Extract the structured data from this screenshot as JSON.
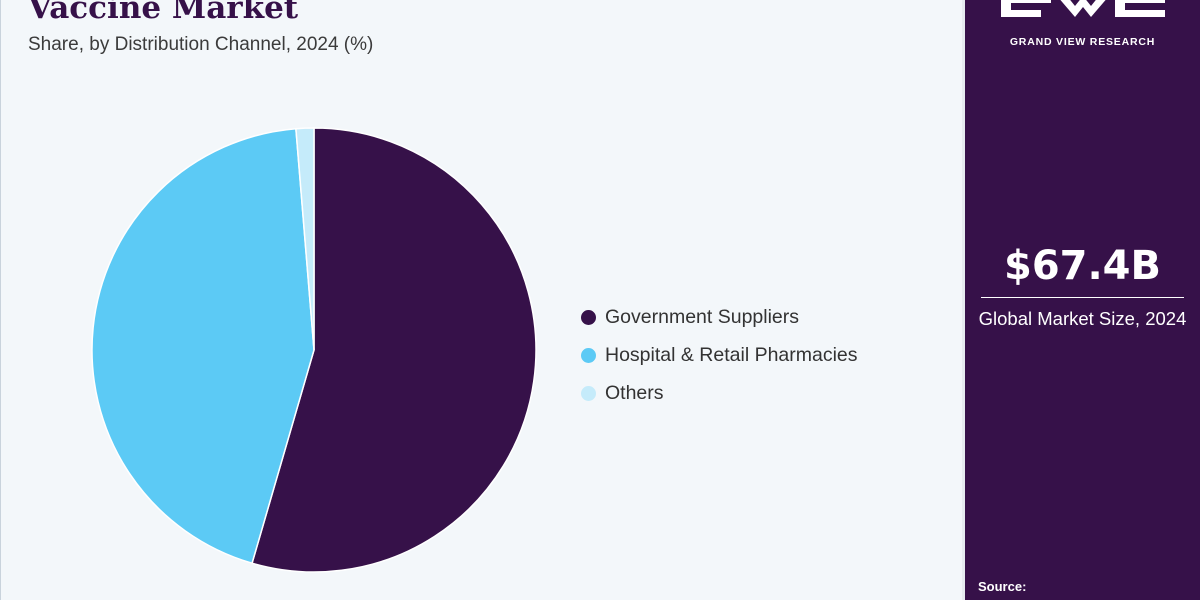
{
  "header": {
    "title": "Vaccine Market",
    "subtitle": "Share, by Distribution Channel, 2024 (%)"
  },
  "chart_data": {
    "type": "pie",
    "title": "Vaccine Market",
    "subtitle": "Share, by Distribution Channel, 2024 (%)",
    "categories": [
      "Government Suppliers",
      "Hospital & Retail Pharmacies",
      "Others"
    ],
    "values": [
      54.5,
      44.2,
      1.3
    ],
    "colors": [
      "#361149",
      "#5ccaf5",
      "#c5ebfa"
    ],
    "start_angle_deg": 0,
    "direction": "clockwise",
    "legend_position": "right",
    "data_labels": false
  },
  "sidebar": {
    "brand": "GRAND VIEW RESEARCH",
    "logo_icon": "gvr-logo-icon",
    "market_value": "$67.4B",
    "market_label": "Global Market Size, 2024",
    "source_label": "Source:",
    "background_color": "#361149"
  }
}
